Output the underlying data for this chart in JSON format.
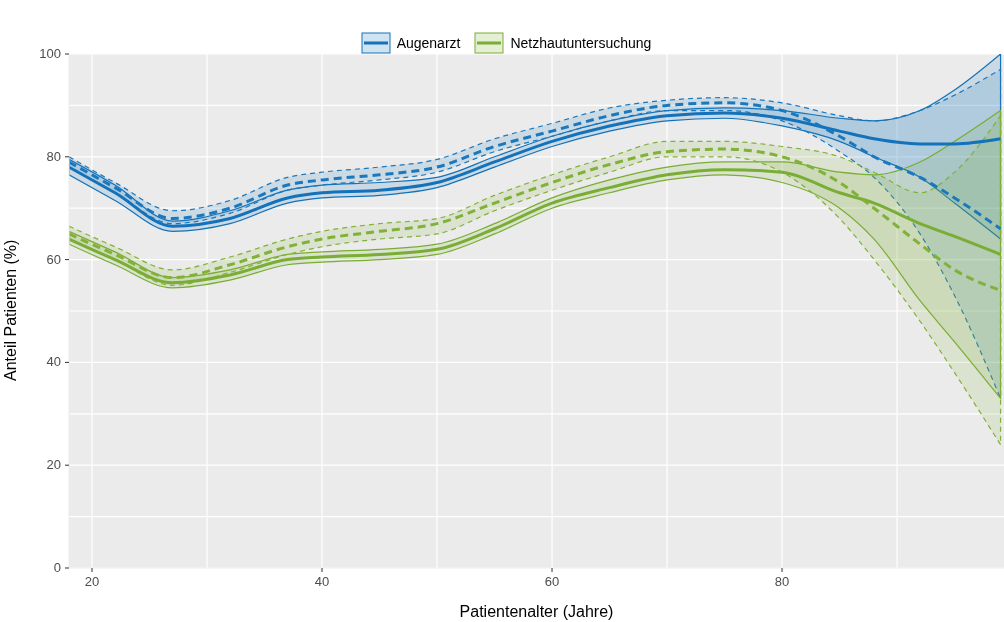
{
  "chart_data": {
    "type": "line",
    "xlabel": "Patientenalter (Jahre)",
    "ylabel": "Anteil Patienten (%)",
    "x": [
      18,
      22,
      27,
      32,
      37,
      40,
      45,
      50,
      55,
      60,
      65,
      70,
      75,
      80,
      85,
      88,
      92,
      95,
      99
    ],
    "series": [
      {
        "name": "Augenarzt",
        "color": "#1372b9",
        "line_style": "solid",
        "values": [
          78,
          73,
          66.5,
          68,
          72,
          73,
          73.5,
          75,
          79,
          83,
          86,
          88,
          88.5,
          87.5,
          85,
          83.5,
          82.5,
          82.5,
          83.5
        ],
        "lower": [
          76.5,
          71.5,
          65.5,
          67,
          71,
          72,
          72.5,
          74,
          78,
          82,
          85,
          87,
          87.5,
          86,
          83,
          80,
          76,
          71,
          64
        ],
        "upper": [
          79.5,
          74.5,
          67.5,
          69.5,
          73.5,
          74.5,
          75,
          76,
          80,
          84,
          87,
          89,
          89.5,
          89,
          87.5,
          87,
          89,
          93,
          100
        ]
      },
      {
        "color": "#1a78be",
        "line_style": "dashed",
        "values": [
          79,
          74,
          68,
          70,
          74.5,
          75.5,
          76.5,
          78,
          82,
          85,
          88,
          90,
          90.5,
          89,
          84,
          80,
          76,
          72,
          66
        ],
        "lower": [
          78,
          73,
          67,
          69,
          73.5,
          74.5,
          75.5,
          77,
          81,
          84,
          87,
          89,
          89,
          87,
          81,
          76,
          65,
          53,
          33
        ],
        "upper": [
          80,
          75,
          69.5,
          71.5,
          76,
          77,
          78,
          79.5,
          83.5,
          86.5,
          89.5,
          91,
          91.5,
          90.5,
          88,
          87,
          89,
          92,
          97
        ]
      },
      {
        "name": "Netzhautuntersuchung",
        "color": "#7aad33",
        "line_style": "solid",
        "values": [
          64,
          60,
          55.5,
          57,
          60,
          60.5,
          61,
          62,
          66,
          71,
          74,
          76.5,
          77.5,
          77,
          73,
          71,
          67,
          64.5,
          61
        ],
        "lower": [
          63,
          59,
          54.5,
          56,
          59,
          59.5,
          60,
          61,
          65,
          70,
          73,
          75.5,
          76.5,
          75,
          70,
          64,
          52,
          44,
          33
        ],
        "upper": [
          65.5,
          61.5,
          56.5,
          58,
          61,
          61.5,
          62,
          63,
          67,
          72,
          75.5,
          78,
          79,
          79,
          77,
          76.5,
          79,
          83,
          89
        ]
      },
      {
        "color": "#80b139",
        "line_style": "dashed",
        "values": [
          65,
          61,
          56.5,
          59,
          62.5,
          64,
          65.5,
          67,
          71,
          75,
          78.5,
          81,
          81.5,
          80,
          75,
          70,
          63,
          58,
          54
        ],
        "lower": [
          64,
          60,
          55,
          57.5,
          61,
          62.5,
          64,
          65,
          69.5,
          73.5,
          77,
          80,
          80,
          77,
          68,
          60,
          48,
          38,
          24
        ],
        "upper": [
          66.5,
          62.5,
          58,
          60.5,
          64,
          65.5,
          67,
          68,
          72.5,
          76.5,
          80,
          83,
          83,
          82,
          80,
          77,
          73,
          77,
          88
        ]
      }
    ],
    "xlim": [
      18,
      99.3
    ],
    "xticks": [
      20,
      {
        "value": 30,
        "label": null
      },
      40,
      {
        "value": 50,
        "label": null
      },
      60,
      {
        "value": 70,
        "label": null
      },
      80,
      {
        "value": 90,
        "label": null
      }
    ],
    "ylim": [
      0,
      100
    ],
    "yticks": [
      0,
      {
        "value": 10,
        "label": null
      },
      20,
      {
        "value": 30,
        "label": null
      },
      40,
      {
        "value": 50,
        "label": null
      },
      60,
      {
        "value": 70,
        "label": null
      },
      80,
      {
        "value": 90,
        "label": null
      },
      100
    ],
    "grid": true,
    "legend": "top"
  }
}
